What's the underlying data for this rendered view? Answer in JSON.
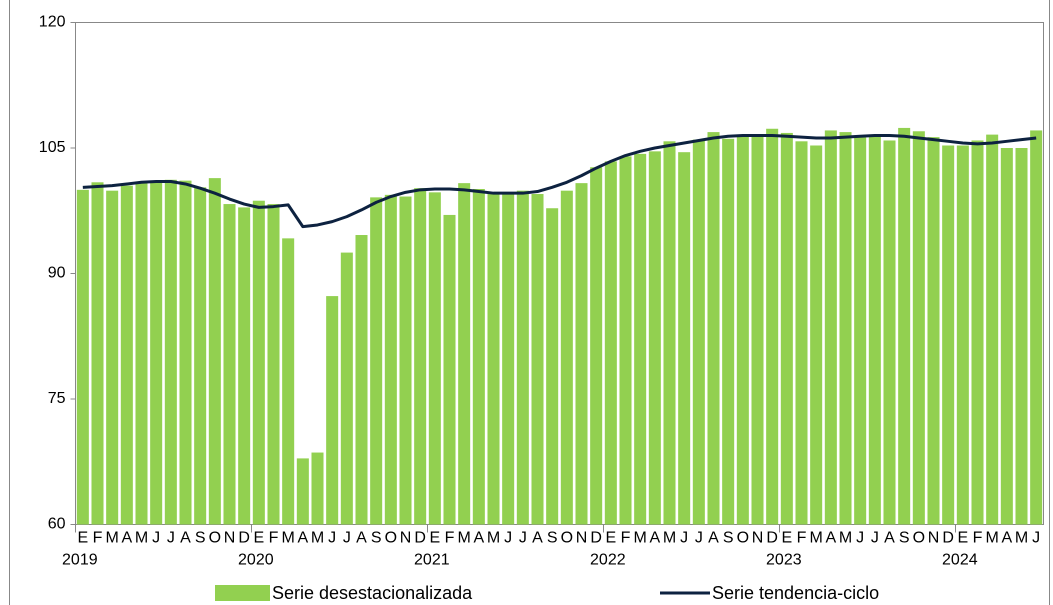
{
  "chart_data": {
    "type": "bar_line",
    "categories": [
      "E",
      "F",
      "M",
      "A",
      "M",
      "J",
      "J",
      "A",
      "S",
      "O",
      "N",
      "D",
      "E",
      "F",
      "M",
      "A",
      "M",
      "J",
      "J",
      "A",
      "S",
      "O",
      "N",
      "D",
      "E",
      "F",
      "M",
      "A",
      "M",
      "J",
      "J",
      "A",
      "S",
      "O",
      "N",
      "D",
      "E",
      "F",
      "M",
      "A",
      "M",
      "J",
      "J",
      "A",
      "S",
      "O",
      "N",
      "D",
      "E",
      "F",
      "M",
      "A",
      "M",
      "J",
      "J",
      "A",
      "S",
      "O",
      "N",
      "D",
      "E",
      "F",
      "M",
      "A",
      "M",
      "J"
    ],
    "years": [
      "2019",
      "2020",
      "2021",
      "2022",
      "2023",
      "2024"
    ],
    "series": [
      {
        "name": "Serie desestacionalizada",
        "type": "bar",
        "color": "#92d050",
        "values": [
          100.0,
          100.9,
          99.9,
          100.5,
          100.8,
          101.0,
          101.2,
          101.1,
          100.3,
          101.4,
          98.3,
          97.9,
          98.7,
          98.3,
          94.2,
          67.9,
          68.6,
          87.3,
          92.5,
          94.6,
          99.1,
          99.4,
          99.2,
          100.2,
          99.7,
          97.0,
          100.8,
          100.1,
          99.5,
          99.6,
          99.9,
          99.5,
          97.8,
          99.9,
          100.8,
          102.7,
          103.4,
          104.0,
          104.3,
          104.6,
          105.8,
          104.5,
          106.0,
          106.9,
          106.1,
          106.6,
          106.6,
          107.3,
          106.8,
          105.8,
          105.3,
          107.1,
          106.9,
          106.5,
          106.6,
          105.9,
          107.4,
          107.0,
          106.3,
          105.3,
          105.3,
          105.9,
          106.6,
          105.0,
          105.0,
          107.1
        ]
      },
      {
        "name": "Serie tendencia-ciclo",
        "type": "line",
        "color": "#0d2240",
        "values": [
          100.3,
          100.4,
          100.5,
          100.7,
          100.9,
          101.0,
          101.0,
          100.7,
          100.2,
          99.6,
          98.9,
          98.3,
          97.9,
          98.0,
          98.2,
          95.6,
          95.8,
          96.2,
          96.8,
          97.6,
          98.5,
          99.2,
          99.7,
          100.0,
          100.1,
          100.1,
          100.0,
          99.8,
          99.6,
          99.6,
          99.6,
          99.8,
          100.3,
          100.9,
          101.7,
          102.6,
          103.4,
          104.1,
          104.6,
          105.0,
          105.3,
          105.6,
          105.9,
          106.2,
          106.4,
          106.5,
          106.5,
          106.5,
          106.4,
          106.3,
          106.2,
          106.2,
          106.3,
          106.4,
          106.5,
          106.5,
          106.4,
          106.2,
          106.0,
          105.8,
          105.6,
          105.5,
          105.6,
          105.8,
          106.0,
          106.2
        ]
      }
    ],
    "ylim": [
      60,
      120
    ],
    "yticks": [
      60,
      75,
      90,
      105,
      120
    ],
    "grid": false,
    "legend": "bottom"
  }
}
